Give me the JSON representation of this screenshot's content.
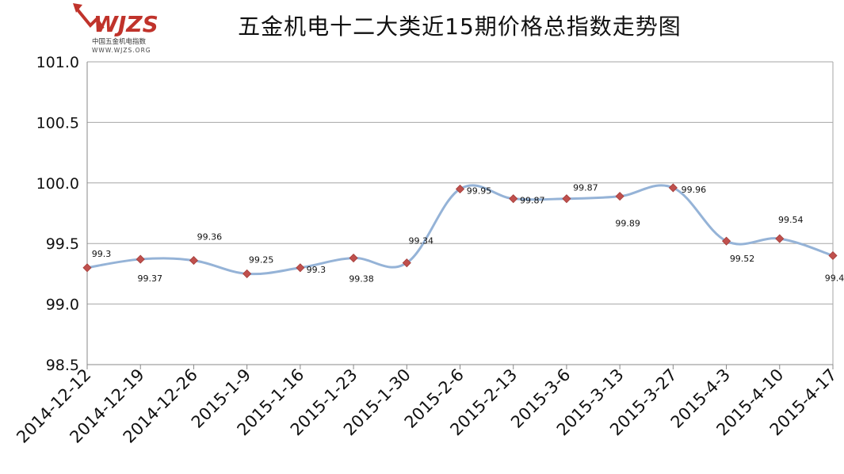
{
  "logo": {
    "mark": "WJZS",
    "subtitle": "中国五金机电指数",
    "url": "WWW.WJZS.ORG"
  },
  "chart_data": {
    "type": "line",
    "title": "五金机电十二大类近15期价格总指数走势图",
    "categories": [
      "2014-12-12",
      "2014-12-19",
      "2014-12-26",
      "2015-1-9",
      "2015-1-16",
      "2015-1-23",
      "2015-1-30",
      "2015-2-6",
      "2015-2-13",
      "2015-3-6",
      "2015-3-13",
      "2015-3-27",
      "2015-4-3",
      "2015-4-10",
      "2015-4-17"
    ],
    "values": [
      99.3,
      99.37,
      99.36,
      99.25,
      99.3,
      99.38,
      99.34,
      99.95,
      99.87,
      99.87,
      99.89,
      99.96,
      99.52,
      99.54,
      99.4
    ],
    "data_labels": [
      "99.3",
      "99.37",
      "99.36",
      "99.25",
      "99.3",
      "99.38",
      "99.34",
      "99.95",
      "99.87",
      "99.87",
      "99.89",
      "99.96",
      "99.52",
      "99.54",
      "99.4"
    ],
    "ylim": [
      98.5,
      101.0
    ],
    "yticks": [
      "98.5",
      "99.0",
      "99.5",
      "100.0",
      "100.5",
      "101.0"
    ],
    "xlabel": "",
    "ylabel": "",
    "grid": true,
    "smooth": true,
    "colors": {
      "line": "#95b3d7",
      "marker": "#c0504d"
    }
  }
}
